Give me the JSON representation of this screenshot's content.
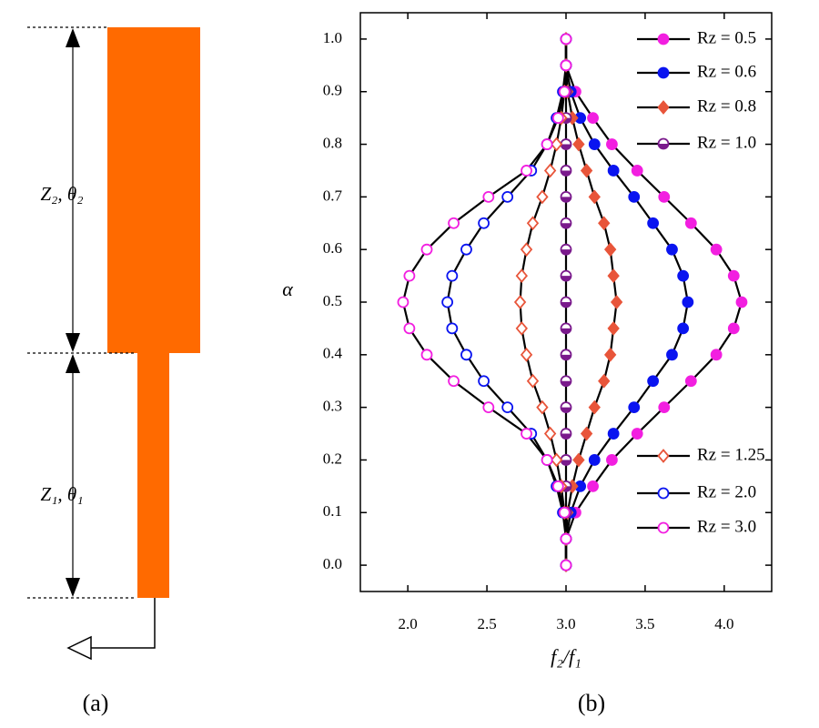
{
  "diagram": {
    "labels": [
      "Z₂, θ₂",
      "Z₁, θ₁"
    ],
    "caption": "(a)"
  },
  "chart_data": {
    "type": "line",
    "caption": "(b)",
    "xlabel": "f₂/f₁",
    "ylabel": "α",
    "y": [
      0,
      0.05,
      0.1,
      0.15,
      0.2,
      0.25,
      0.3,
      0.35,
      0.4,
      0.45,
      0.5,
      0.55,
      0.6,
      0.65,
      0.7,
      0.75,
      0.8,
      0.85,
      0.9,
      0.95,
      1.0
    ],
    "series": [
      {
        "name": "Rz = 0.5",
        "color": "#f21fe0",
        "marker": "circle",
        "fill": "filled",
        "values": [
          3.0,
          3.0,
          3.06,
          3.17,
          3.29,
          3.45,
          3.62,
          3.79,
          3.95,
          4.06,
          4.11,
          4.06,
          3.95,
          3.79,
          3.62,
          3.45,
          3.29,
          3.17,
          3.06,
          3.0,
          3.0
        ]
      },
      {
        "name": "Rz = 0.6",
        "color": "#0a14f0",
        "marker": "circle",
        "fill": "filled",
        "values": [
          3.0,
          3.0,
          3.03,
          3.09,
          3.18,
          3.3,
          3.43,
          3.55,
          3.67,
          3.74,
          3.77,
          3.74,
          3.67,
          3.55,
          3.43,
          3.3,
          3.18,
          3.09,
          3.03,
          3.0,
          3.0
        ]
      },
      {
        "name": "Rz = 0.8",
        "color": "#e8553a",
        "marker": "diamond",
        "fill": "filled",
        "values": [
          3.0,
          3.0,
          3.01,
          3.04,
          3.08,
          3.13,
          3.18,
          3.24,
          3.28,
          3.3,
          3.32,
          3.3,
          3.28,
          3.24,
          3.18,
          3.13,
          3.08,
          3.04,
          3.01,
          3.0,
          3.0
        ]
      },
      {
        "name": "Rz = 1.0",
        "color": "#7a1a8c",
        "marker": "circle",
        "fill": "half",
        "values": [
          3.0,
          3.0,
          3.0,
          3.0,
          3.0,
          3.0,
          3.0,
          3.0,
          3.0,
          3.0,
          3.0,
          3.0,
          3.0,
          3.0,
          3.0,
          3.0,
          3.0,
          3.0,
          3.0,
          3.0,
          3.0
        ]
      },
      {
        "name": "Rz = 1.25",
        "color": "#e8553a",
        "marker": "diamond",
        "fill": "open",
        "values": [
          3.0,
          3.0,
          2.99,
          2.97,
          2.94,
          2.9,
          2.85,
          2.79,
          2.75,
          2.72,
          2.71,
          2.72,
          2.75,
          2.79,
          2.85,
          2.9,
          2.94,
          2.97,
          2.99,
          3.0,
          3.0
        ]
      },
      {
        "name": "Rz = 2.0",
        "color": "#0a14f0",
        "marker": "circle",
        "fill": "open",
        "values": [
          3.0,
          3.0,
          2.98,
          2.94,
          2.88,
          2.78,
          2.63,
          2.48,
          2.37,
          2.28,
          2.25,
          2.28,
          2.37,
          2.48,
          2.63,
          2.78,
          2.88,
          2.94,
          2.98,
          3.0,
          3.0
        ]
      },
      {
        "name": "Rz = 3.0",
        "color": "#f21fe0",
        "marker": "circle",
        "fill": "open",
        "values": [
          3.0,
          3.0,
          2.99,
          2.95,
          2.88,
          2.75,
          2.51,
          2.29,
          2.12,
          2.01,
          1.97,
          2.01,
          2.12,
          2.29,
          2.51,
          2.75,
          2.88,
          2.95,
          2.99,
          3.0,
          3.0
        ]
      }
    ],
    "xlim": [
      1.7,
      4.3
    ],
    "ylim": [
      -0.05,
      1.05
    ],
    "xticks": [
      {
        "value": 2,
        "label": "2.0"
      },
      2.5,
      {
        "value": 3,
        "label": "3.0"
      },
      3.5,
      {
        "value": 4,
        "label": "4.0"
      }
    ],
    "yticks": [
      {
        "value": 0,
        "label": "0.0"
      },
      0.1,
      0.2,
      0.3,
      0.4,
      0.5,
      0.6,
      0.7,
      0.8,
      0.9,
      {
        "value": 1,
        "label": "1.0"
      }
    ]
  }
}
